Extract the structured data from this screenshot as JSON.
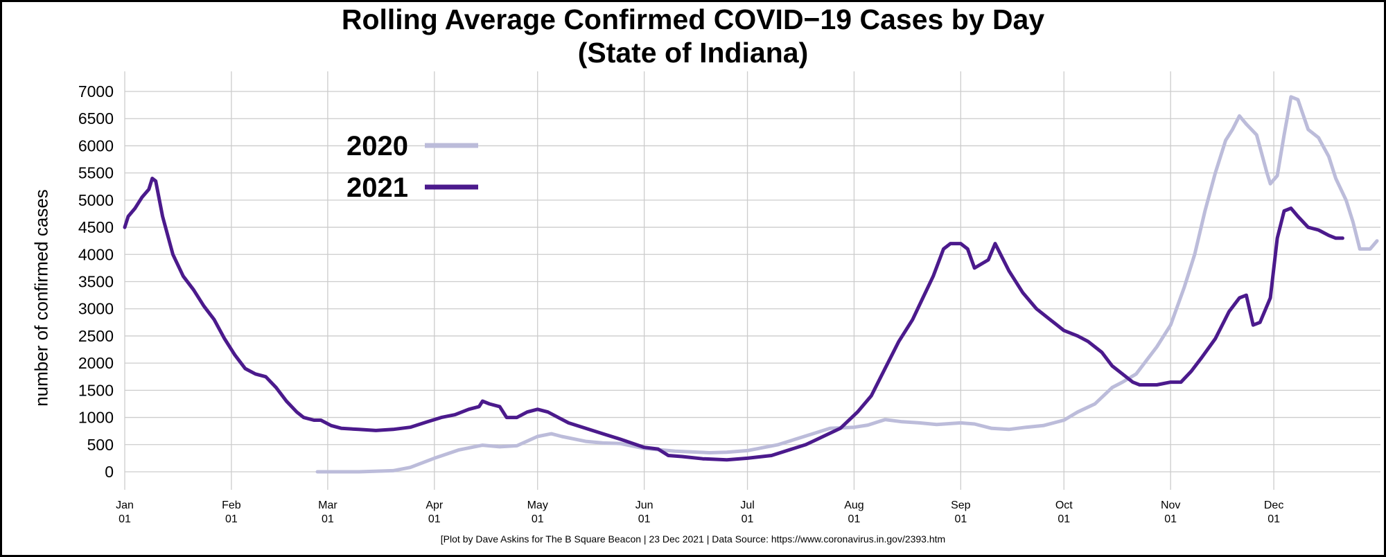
{
  "title": {
    "line1": "Rolling Average Confirmed COVID−19 Cases by Day",
    "line2": "(State of Indiana)"
  },
  "caption": "[Plot by Dave Askins for The B Square Beacon | 23 Dec 2021 | Data Source: https://www.coronavirus.in.gov/2393.htm",
  "colors": {
    "series_2020": "#bcbcda",
    "series_2021": "#4b1a8c",
    "grid": "#cccccc"
  },
  "chart_data": {
    "type": "line",
    "title": "Rolling Average Confirmed COVID−19 Cases by Day (State of Indiana)",
    "xlabel": "",
    "ylabel": "number of confirmed cases",
    "ylim": [
      0,
      7000
    ],
    "xlim": [
      "01-01",
      "12-31"
    ],
    "grid": true,
    "legend_placement": "upper-left",
    "y_ticks": [
      "7000",
      "6500",
      "6000",
      "5500",
      "5000",
      "4500",
      "4000",
      "3500",
      "3000",
      "2500",
      "2000",
      "1500",
      "1000",
      "500",
      "0"
    ],
    "x_ticks": [
      {
        "month": "Jan",
        "day": "01"
      },
      {
        "month": "Feb",
        "day": "01"
      },
      {
        "month": "Mar",
        "day": "01"
      },
      {
        "month": "Apr",
        "day": "01"
      },
      {
        "month": "May",
        "day": "01"
      },
      {
        "month": "Jun",
        "day": "01"
      },
      {
        "month": "Jul",
        "day": "01"
      },
      {
        "month": "Aug",
        "day": "01"
      },
      {
        "month": "Sep",
        "day": "01"
      },
      {
        "month": "Oct",
        "day": "01"
      },
      {
        "month": "Nov",
        "day": "01"
      },
      {
        "month": "Dec",
        "day": "01"
      }
    ],
    "series": [
      {
        "name": "2020",
        "color": "#bcbcda",
        "points": [
          [
            "02-26",
            0
          ],
          [
            "03-10",
            0
          ],
          [
            "03-20",
            20
          ],
          [
            "03-25",
            80
          ],
          [
            "04-01",
            250
          ],
          [
            "04-08",
            400
          ],
          [
            "04-15",
            490
          ],
          [
            "04-20",
            460
          ],
          [
            "04-25",
            480
          ],
          [
            "05-01",
            650
          ],
          [
            "05-05",
            700
          ],
          [
            "05-08",
            650
          ],
          [
            "05-15",
            560
          ],
          [
            "05-20",
            530
          ],
          [
            "05-25",
            520
          ],
          [
            "06-01",
            430
          ],
          [
            "06-10",
            380
          ],
          [
            "06-20",
            350
          ],
          [
            "06-25",
            360
          ],
          [
            "07-01",
            390
          ],
          [
            "07-10",
            500
          ],
          [
            "07-15",
            600
          ],
          [
            "07-20",
            700
          ],
          [
            "07-25",
            800
          ],
          [
            "08-01",
            820
          ],
          [
            "08-05",
            860
          ],
          [
            "08-10",
            960
          ],
          [
            "08-15",
            920
          ],
          [
            "08-20",
            900
          ],
          [
            "08-25",
            870
          ],
          [
            "09-01",
            900
          ],
          [
            "09-05",
            880
          ],
          [
            "09-10",
            800
          ],
          [
            "09-15",
            780
          ],
          [
            "09-20",
            820
          ],
          [
            "09-25",
            850
          ],
          [
            "10-01",
            950
          ],
          [
            "10-05",
            1100
          ],
          [
            "10-10",
            1250
          ],
          [
            "10-15",
            1550
          ],
          [
            "10-18",
            1650
          ],
          [
            "10-22",
            1800
          ],
          [
            "10-25",
            2050
          ],
          [
            "10-28",
            2300
          ],
          [
            "11-01",
            2700
          ],
          [
            "11-05",
            3400
          ],
          [
            "11-08",
            4000
          ],
          [
            "11-11",
            4800
          ],
          [
            "11-14",
            5500
          ],
          [
            "11-17",
            6100
          ],
          [
            "11-19",
            6300
          ],
          [
            "11-21",
            6550
          ],
          [
            "11-23",
            6400
          ],
          [
            "11-26",
            6200
          ],
          [
            "11-29",
            5500
          ],
          [
            "11-30",
            5300
          ],
          [
            "12-02",
            5450
          ],
          [
            "12-04",
            6200
          ],
          [
            "12-06",
            6900
          ],
          [
            "12-08",
            6850
          ],
          [
            "12-11",
            6300
          ],
          [
            "12-14",
            6150
          ],
          [
            "12-17",
            5800
          ],
          [
            "12-19",
            5400
          ],
          [
            "12-22",
            5000
          ],
          [
            "12-24",
            4600
          ],
          [
            "12-26",
            4100
          ],
          [
            "12-29",
            4100
          ],
          [
            "12-31",
            4250
          ]
        ]
      },
      {
        "name": "2021",
        "color": "#4b1a8c",
        "points": [
          [
            "01-01",
            4500
          ],
          [
            "01-02",
            4700
          ],
          [
            "01-04",
            4850
          ],
          [
            "01-06",
            5050
          ],
          [
            "01-08",
            5200
          ],
          [
            "01-09",
            5400
          ],
          [
            "01-10",
            5350
          ],
          [
            "01-12",
            4700
          ],
          [
            "01-15",
            4000
          ],
          [
            "01-18",
            3600
          ],
          [
            "01-21",
            3350
          ],
          [
            "01-24",
            3050
          ],
          [
            "01-27",
            2800
          ],
          [
            "01-30",
            2450
          ],
          [
            "02-02",
            2150
          ],
          [
            "02-05",
            1900
          ],
          [
            "02-08",
            1800
          ],
          [
            "02-11",
            1750
          ],
          [
            "02-14",
            1550
          ],
          [
            "02-17",
            1300
          ],
          [
            "02-20",
            1100
          ],
          [
            "02-22",
            1000
          ],
          [
            "02-25",
            950
          ],
          [
            "02-27",
            950
          ],
          [
            "03-02",
            850
          ],
          [
            "03-05",
            800
          ],
          [
            "03-10",
            780
          ],
          [
            "03-15",
            760
          ],
          [
            "03-20",
            780
          ],
          [
            "03-25",
            820
          ],
          [
            "03-30",
            920
          ],
          [
            "04-03",
            1000
          ],
          [
            "04-07",
            1050
          ],
          [
            "04-11",
            1150
          ],
          [
            "04-14",
            1200
          ],
          [
            "04-15",
            1300
          ],
          [
            "04-17",
            1250
          ],
          [
            "04-20",
            1200
          ],
          [
            "04-22",
            1000
          ],
          [
            "04-25",
            1000
          ],
          [
            "04-28",
            1100
          ],
          [
            "05-01",
            1150
          ],
          [
            "05-04",
            1100
          ],
          [
            "05-07",
            1000
          ],
          [
            "05-10",
            900
          ],
          [
            "05-15",
            800
          ],
          [
            "05-20",
            700
          ],
          [
            "05-25",
            600
          ],
          [
            "06-01",
            450
          ],
          [
            "06-05",
            420
          ],
          [
            "06-08",
            300
          ],
          [
            "06-12",
            280
          ],
          [
            "06-18",
            240
          ],
          [
            "06-25",
            220
          ],
          [
            "07-01",
            250
          ],
          [
            "07-08",
            300
          ],
          [
            "07-13",
            400
          ],
          [
            "07-18",
            500
          ],
          [
            "07-23",
            650
          ],
          [
            "07-28",
            800
          ],
          [
            "08-02",
            1100
          ],
          [
            "08-06",
            1400
          ],
          [
            "08-10",
            1900
          ],
          [
            "08-14",
            2400
          ],
          [
            "08-18",
            2800
          ],
          [
            "08-21",
            3200
          ],
          [
            "08-24",
            3600
          ],
          [
            "08-27",
            4100
          ],
          [
            "08-29",
            4200
          ],
          [
            "09-01",
            4200
          ],
          [
            "09-03",
            4100
          ],
          [
            "09-05",
            3750
          ],
          [
            "09-09",
            3900
          ],
          [
            "09-11",
            4200
          ],
          [
            "09-15",
            3700
          ],
          [
            "09-19",
            3300
          ],
          [
            "09-23",
            3000
          ],
          [
            "09-27",
            2800
          ],
          [
            "10-01",
            2600
          ],
          [
            "10-05",
            2500
          ],
          [
            "10-08",
            2400
          ],
          [
            "10-12",
            2200
          ],
          [
            "10-15",
            1950
          ],
          [
            "10-18",
            1800
          ],
          [
            "10-21",
            1650
          ],
          [
            "10-23",
            1600
          ],
          [
            "10-28",
            1600
          ],
          [
            "11-01",
            1650
          ],
          [
            "11-04",
            1650
          ],
          [
            "11-07",
            1850
          ],
          [
            "11-10",
            2100
          ],
          [
            "11-14",
            2450
          ],
          [
            "11-18",
            2950
          ],
          [
            "11-21",
            3200
          ],
          [
            "11-23",
            3250
          ],
          [
            "11-25",
            2700
          ],
          [
            "11-27",
            2750
          ],
          [
            "11-30",
            3200
          ],
          [
            "12-02",
            4300
          ],
          [
            "12-04",
            4800
          ],
          [
            "12-06",
            4850
          ],
          [
            "12-08",
            4700
          ],
          [
            "12-11",
            4500
          ],
          [
            "12-14",
            4450
          ],
          [
            "12-17",
            4350
          ],
          [
            "12-19",
            4300
          ],
          [
            "12-21",
            4300
          ]
        ]
      }
    ]
  }
}
